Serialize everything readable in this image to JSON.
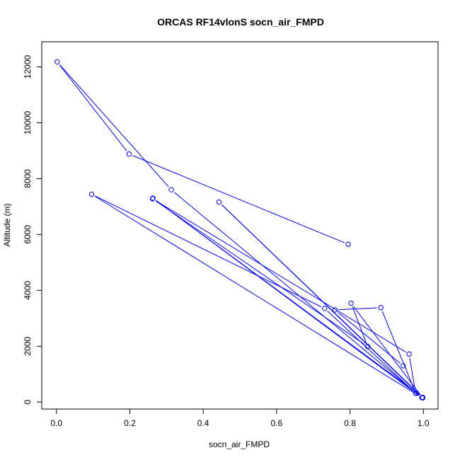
{
  "chart_data": {
    "type": "line",
    "title": "ORCAS RF14vlonS socn_air_FMPD",
    "xlabel": "socn_air_FMPD",
    "ylabel": "Altitude (m)",
    "xlim": [
      -0.04,
      1.04
    ],
    "ylim": [
      -250,
      12900
    ],
    "x_ticks": [
      0.0,
      0.2,
      0.4,
      0.6,
      0.8,
      1.0
    ],
    "x_tick_labels": [
      "0.0",
      "0.2",
      "0.4",
      "0.6",
      "0.8",
      "1.0"
    ],
    "y_ticks": [
      0,
      2000,
      4000,
      6000,
      8000,
      10000,
      12000
    ],
    "y_tick_labels": [
      "0",
      "2000",
      "4000",
      "6000",
      "8000",
      "10000",
      "12000"
    ],
    "grid": false,
    "series_color": "#0000ff",
    "markers": "open-circle",
    "series": [
      {
        "x": [
          0.795,
          0.198,
          0.002,
          0.313,
          0.996,
          0.096,
          0.731,
          0.98,
          0.263,
          0.998,
          0.443,
          0.998,
          0.803,
          0.848,
          0.262,
          0.961,
          0.979,
          0.884,
          0.759,
          0.945
        ],
        "y": [
          5650,
          8880,
          12180,
          7600,
          160,
          7440,
          3350,
          310,
          7300,
          170,
          7160,
          150,
          3540,
          1990,
          7280,
          1720,
          320,
          3380,
          3300,
          1300
        ]
      }
    ]
  }
}
